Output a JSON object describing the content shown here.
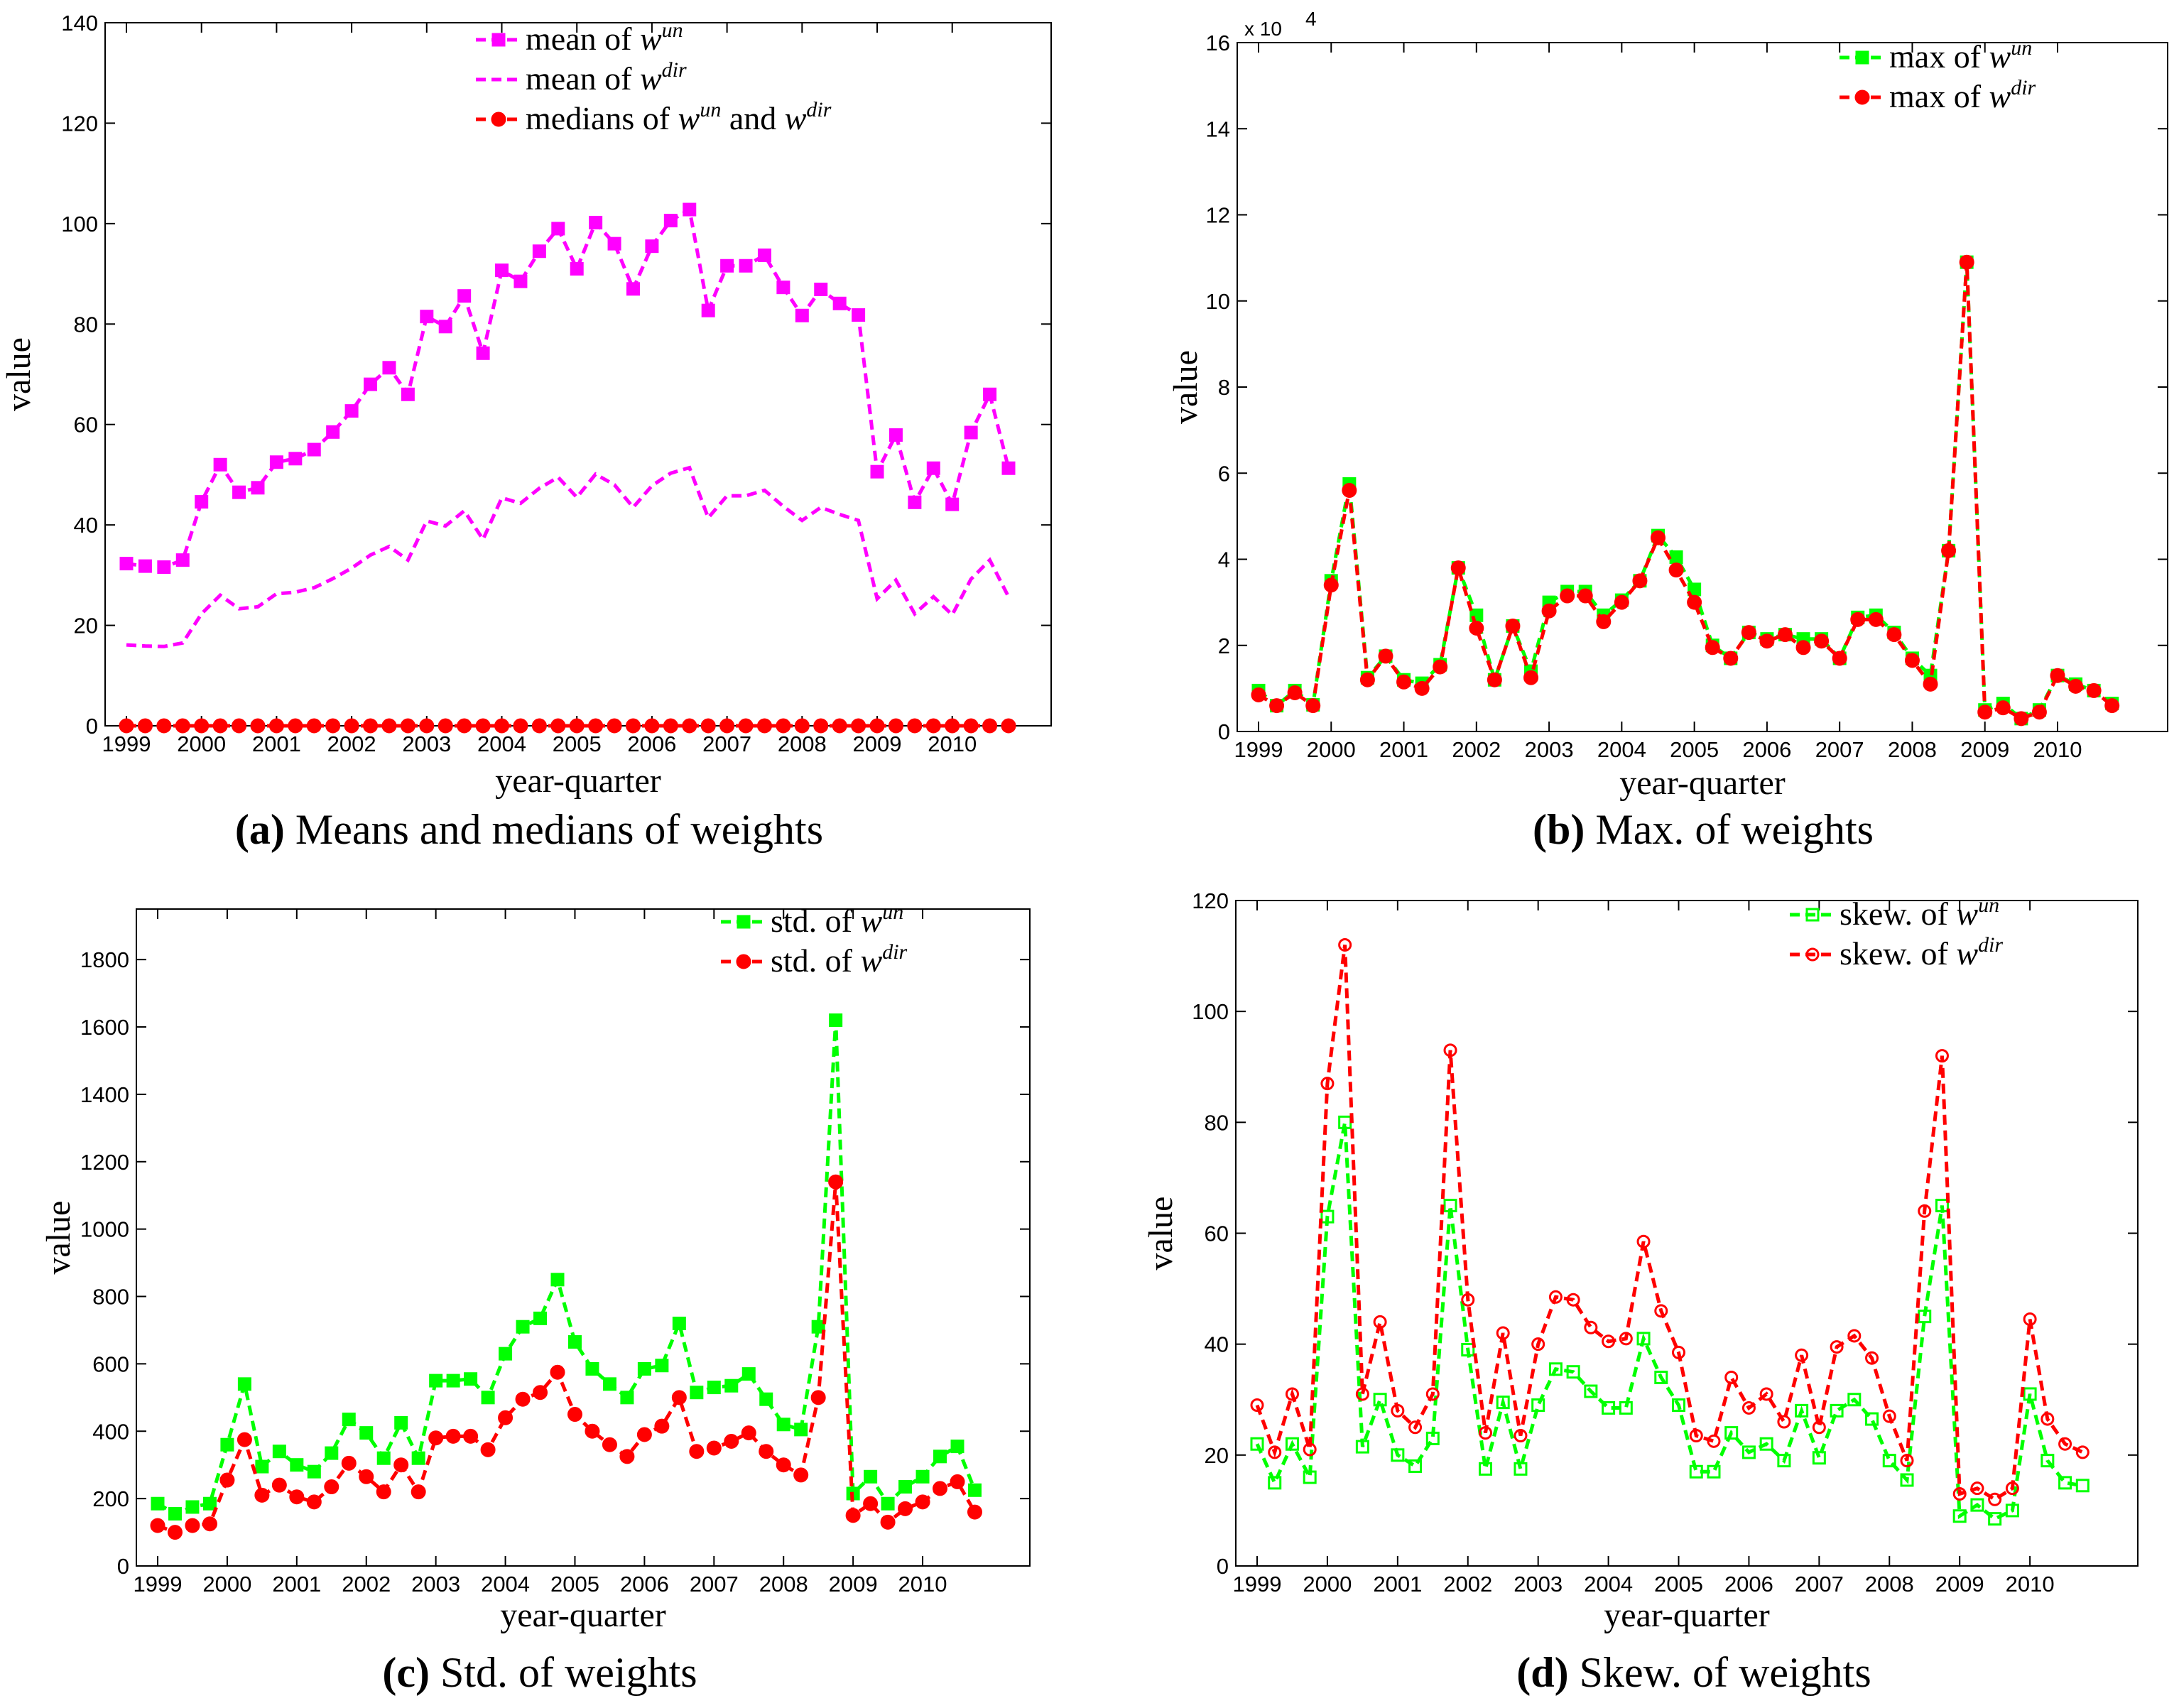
{
  "chart_data": [
    {
      "id": "a",
      "type": "line",
      "caption_label": "(a)",
      "caption_text": "Means and medians of weights",
      "xlabel": "year-quarter",
      "ylabel": "value",
      "ylim": [
        0,
        140
      ],
      "yticks": [
        "0",
        "20",
        "40",
        "60",
        "80",
        "100",
        "120",
        "140"
      ],
      "xticks": [
        "1999",
        "2000",
        "2001",
        "2002",
        "2003",
        "2004",
        "2005",
        "2006",
        "2007",
        "2008",
        "2009",
        "2010"
      ],
      "series": [
        {
          "name_prefix": "mean of ",
          "name_var": "w",
          "name_sup": "un",
          "color": "#ff00ff",
          "marker": "square",
          "dash": true,
          "values": [
            32.3,
            31.8,
            31.6,
            33.0,
            44.6,
            52.0,
            46.5,
            47.4,
            52.5,
            53.2,
            55.0,
            58.5,
            62.7,
            68.0,
            71.3,
            66.0,
            81.5,
            79.5,
            85.6,
            74.2,
            90.7,
            88.5,
            94.5,
            99.0,
            91.0,
            100.2,
            96.0,
            87.0,
            95.5,
            100.6,
            102.8,
            82.7,
            91.6,
            91.6,
            93.7,
            87.3,
            81.7,
            86.9,
            84.1,
            81.8,
            50.6,
            57.9,
            44.5,
            51.3,
            44.1,
            58.4,
            66.0,
            51.3
          ]
        },
        {
          "name_prefix": "mean of ",
          "name_var": "w",
          "name_sup": "dir",
          "color": "#ff00ff",
          "marker": "none",
          "dash": true,
          "values": [
            16.1,
            15.9,
            15.8,
            16.5,
            22.3,
            26.0,
            23.3,
            23.7,
            26.3,
            26.6,
            27.5,
            29.3,
            31.4,
            34.0,
            35.7,
            33.0,
            40.8,
            39.8,
            42.8,
            37.1,
            45.4,
            44.3,
            47.3,
            49.5,
            45.5,
            50.1,
            48.0,
            43.5,
            47.8,
            50.3,
            51.4,
            41.4,
            45.8,
            45.8,
            46.9,
            43.7,
            40.9,
            43.5,
            42.1,
            40.9,
            25.3,
            29.0,
            22.3,
            25.7,
            22.1,
            29.2,
            33.0,
            25.7
          ]
        },
        {
          "name_prefix": "medians of ",
          "name_var": "w",
          "name_sup": "un",
          "name_mid": " and ",
          "name_var2": "w",
          "name_sup2": "dir",
          "color": "#ff0000",
          "marker": "circle",
          "dash": true,
          "values": [
            0,
            0,
            0,
            0,
            0,
            0,
            0,
            0,
            0,
            0,
            0,
            0,
            0,
            0,
            0,
            0,
            0,
            0,
            0,
            0,
            0,
            0,
            0,
            0,
            0,
            0,
            0,
            0,
            0,
            0,
            0,
            0,
            0,
            0,
            0,
            0,
            0,
            0,
            0,
            0,
            0,
            0,
            0,
            0,
            0,
            0,
            0,
            0
          ]
        }
      ]
    },
    {
      "id": "b",
      "type": "line",
      "caption_label": "(b)",
      "caption_text": "Max. of weights",
      "xlabel": "year-quarter",
      "ylabel": "value",
      "ylim": [
        0,
        16
      ],
      "yticks": [
        "0",
        "2",
        "4",
        "6",
        "8",
        "10",
        "12",
        "14",
        "16"
      ],
      "yexponent": "x 10",
      "yexponent_sup": "4",
      "xticks": [
        "1999",
        "2000",
        "2001",
        "2002",
        "2003",
        "2004",
        "2005",
        "2006",
        "2007",
        "2008",
        "2009",
        "2010"
      ],
      "series": [
        {
          "name_prefix": "max of ",
          "name_var": "w",
          "name_sup": "un",
          "color": "#00ff00",
          "marker": "square",
          "dash": true,
          "values": [
            0.95,
            0.6,
            0.95,
            0.62,
            3.5,
            5.75,
            1.25,
            1.75,
            1.2,
            1.12,
            1.55,
            3.8,
            2.7,
            1.2,
            2.45,
            1.4,
            3.0,
            3.25,
            3.25,
            2.7,
            3.05,
            3.5,
            4.55,
            4.05,
            3.3,
            2.0,
            1.7,
            2.3,
            2.15,
            2.25,
            2.15,
            2.15,
            1.7,
            2.65,
            2.7,
            2.3,
            1.7,
            1.3,
            4.2,
            10.9,
            0.5,
            0.65,
            0.3,
            0.5,
            1.3,
            1.1,
            0.95,
            0.65
          ]
        },
        {
          "name_prefix": "max of ",
          "name_var": "w",
          "name_sup": "dir",
          "color": "#ff0000",
          "marker": "circle",
          "dash": true,
          "values": [
            0.85,
            0.6,
            0.9,
            0.6,
            3.4,
            5.6,
            1.2,
            1.75,
            1.15,
            1.0,
            1.5,
            3.8,
            2.4,
            1.2,
            2.45,
            1.25,
            2.8,
            3.15,
            3.15,
            2.55,
            3.0,
            3.5,
            4.5,
            3.75,
            3.0,
            1.95,
            1.7,
            2.3,
            2.1,
            2.25,
            1.95,
            2.1,
            1.7,
            2.6,
            2.6,
            2.25,
            1.65,
            1.1,
            4.2,
            10.9,
            0.45,
            0.55,
            0.3,
            0.45,
            1.3,
            1.05,
            0.95,
            0.6
          ]
        }
      ]
    },
    {
      "id": "c",
      "type": "line",
      "caption_label": "(c)",
      "caption_text": "Std. of weights",
      "xlabel": "year-quarter",
      "ylabel": "value",
      "ylim": [
        0,
        1950
      ],
      "yticks": [
        "0",
        "200",
        "400",
        "600",
        "800",
        "1000",
        "1200",
        "1400",
        "1600",
        "1800"
      ],
      "ytick_values": [
        0,
        200,
        400,
        600,
        800,
        1000,
        1200,
        1400,
        1600,
        1800
      ],
      "xticks": [
        "1999",
        "2000",
        "2001",
        "2002",
        "2003",
        "2004",
        "2005",
        "2006",
        "2007",
        "2008",
        "2009",
        "2010"
      ],
      "series": [
        {
          "name_prefix": "std. of ",
          "name_var": "w",
          "name_sup": "un",
          "color": "#00ff00",
          "marker": "square",
          "dash": true,
          "values": [
            185,
            155,
            175,
            185,
            360,
            540,
            295,
            340,
            300,
            280,
            335,
            435,
            395,
            320,
            425,
            320,
            550,
            550,
            555,
            500,
            630,
            710,
            735,
            850,
            665,
            585,
            540,
            500,
            585,
            595,
            720,
            515,
            530,
            535,
            570,
            495,
            420,
            405,
            710,
            1620,
            215,
            265,
            185,
            235,
            265,
            325,
            355,
            225
          ]
        },
        {
          "name_prefix": "std. of ",
          "name_var": "w",
          "name_sup": "dir",
          "color": "#ff0000",
          "marker": "circle",
          "dash": true,
          "values": [
            120,
            100,
            120,
            125,
            255,
            375,
            210,
            240,
            205,
            190,
            235,
            305,
            265,
            220,
            300,
            220,
            380,
            385,
            385,
            345,
            440,
            495,
            515,
            575,
            450,
            400,
            360,
            325,
            390,
            415,
            500,
            340,
            350,
            370,
            395,
            340,
            300,
            270,
            500,
            1140,
            150,
            185,
            130,
            170,
            190,
            230,
            250,
            160
          ]
        }
      ]
    },
    {
      "id": "d",
      "type": "line",
      "caption_label": "(d)",
      "caption_text": "Skew. of weights",
      "xlabel": "year-quarter",
      "ylabel": "value",
      "ylim": [
        0,
        120
      ],
      "yticks": [
        "0",
        "20",
        "40",
        "60",
        "80",
        "100",
        "120"
      ],
      "xticks": [
        "1999",
        "2000",
        "2001",
        "2002",
        "2003",
        "2004",
        "2005",
        "2006",
        "2007",
        "2008",
        "2009",
        "2010"
      ],
      "series": [
        {
          "name_prefix": "skew. of ",
          "name_var": "w",
          "name_sup": "un",
          "color": "#00ff00",
          "marker": "square-open",
          "dash": true,
          "values": [
            22,
            15,
            22,
            16,
            63,
            80,
            21.5,
            30,
            20,
            18,
            23,
            65,
            39,
            17.5,
            29.5,
            17.5,
            29,
            35.5,
            35,
            31.5,
            28.5,
            28.5,
            41,
            34,
            29,
            17,
            17,
            24,
            20.5,
            22,
            19,
            28,
            19.5,
            28,
            30,
            26.5,
            19,
            15.5,
            45,
            65,
            9,
            11,
            8.5,
            10,
            31,
            19,
            15,
            14.5
          ]
        },
        {
          "name_prefix": "skew. of ",
          "name_var": "w",
          "name_sup": "dir",
          "color": "#ff0000",
          "marker": "circle-open",
          "dash": true,
          "values": [
            29,
            20.5,
            31,
            21,
            87,
            112,
            31,
            44,
            28,
            25,
            31,
            93,
            48,
            24,
            42,
            23.5,
            40,
            48.5,
            48,
            43,
            40.5,
            41,
            58.5,
            46,
            38.5,
            23.5,
            22.5,
            34,
            28.5,
            31,
            26,
            38,
            25,
            39.5,
            41.5,
            37.5,
            27,
            19,
            64,
            92,
            13,
            14,
            12,
            14,
            44.5,
            26.5,
            22,
            20.5
          ]
        }
      ]
    }
  ]
}
